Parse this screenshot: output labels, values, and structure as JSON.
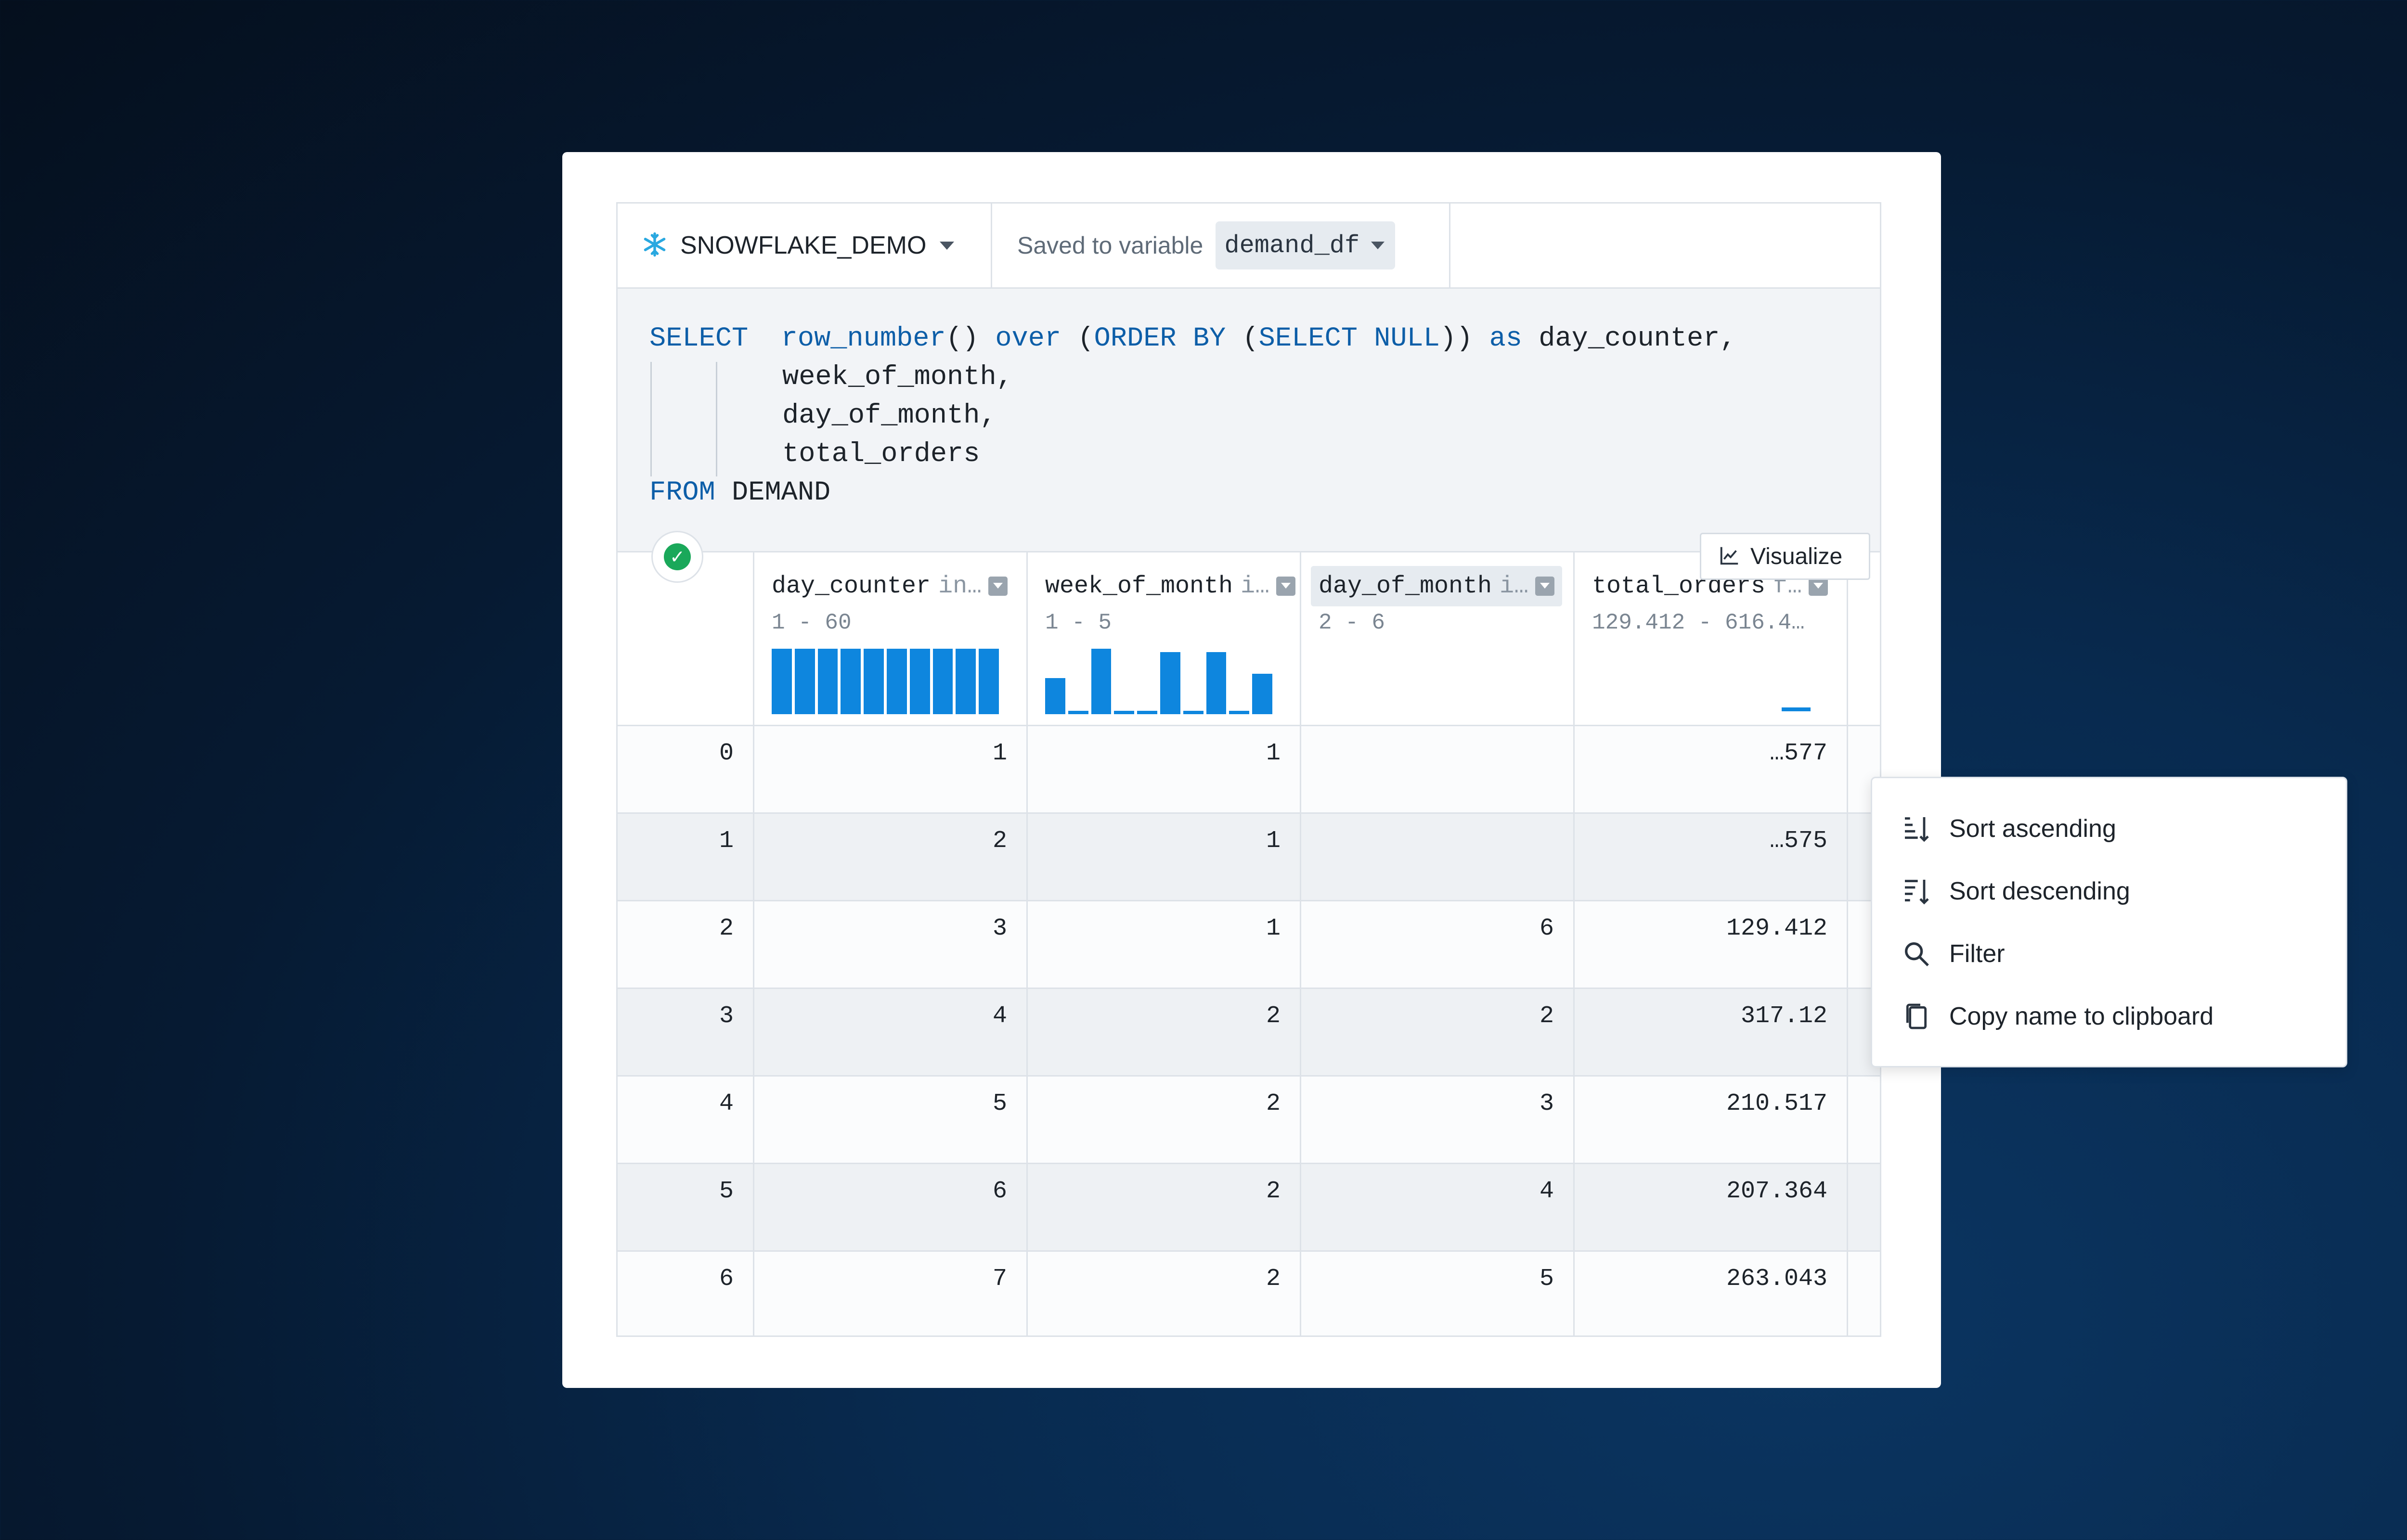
{
  "connection": {
    "name": "SNOWFLAKE_DEMO",
    "icon": "snowflake-icon"
  },
  "saved_variable": {
    "label": "Saved to variable",
    "value": "demand_df"
  },
  "sql": {
    "line1": {
      "kw1": "SELECT",
      "fn": "row_number",
      "p1": "() ",
      "kw2": "over",
      "p2": " (",
      "kw3": "ORDER BY",
      "p3": " (",
      "kw4": "SELECT",
      "p4": " ",
      "kw5": "NULL",
      "p5": ")) ",
      "kw6": "as",
      "p6": " day_counter,"
    },
    "line2": "week_of_month,",
    "line3": "day_of_month,",
    "line4": "total_orders",
    "line5": {
      "kw": "FROM",
      "rest": " DEMAND"
    }
  },
  "status": {
    "state": "success",
    "icon": "check-icon"
  },
  "visualize_label": "Visualize",
  "columns": [
    {
      "name": "day_counter",
      "type": "in…",
      "range": "1 - 60"
    },
    {
      "name": "week_of_month",
      "type": "i…",
      "range": "1 - 5"
    },
    {
      "name": "day_of_month",
      "type": "i…",
      "range": "2 - 6"
    },
    {
      "name": "total_orders",
      "type": "f…",
      "range": "129.412 - 616.4…"
    }
  ],
  "histograms": {
    "day_counter": [
      1,
      1,
      1,
      1,
      1,
      1,
      1,
      1,
      1,
      1
    ],
    "week_of_month": [
      0.55,
      0.05,
      1,
      0.05,
      0.05,
      0.95,
      0.05,
      0.95,
      0.05,
      0.62
    ],
    "accent": "#0e86de"
  },
  "rows": [
    {
      "index": "0",
      "day_counter": "1",
      "week_of_month": "1",
      "day_of_month": "",
      "total_orders": "…577"
    },
    {
      "index": "1",
      "day_counter": "2",
      "week_of_month": "1",
      "day_of_month": "",
      "total_orders": "…575"
    },
    {
      "index": "2",
      "day_counter": "3",
      "week_of_month": "1",
      "day_of_month": "6",
      "total_orders": "129.412"
    },
    {
      "index": "3",
      "day_counter": "4",
      "week_of_month": "2",
      "day_of_month": "2",
      "total_orders": "317.12"
    },
    {
      "index": "4",
      "day_counter": "5",
      "week_of_month": "2",
      "day_of_month": "3",
      "total_orders": "210.517"
    },
    {
      "index": "5",
      "day_counter": "6",
      "week_of_month": "2",
      "day_of_month": "4",
      "total_orders": "207.364"
    },
    {
      "index": "6",
      "day_counter": "7",
      "week_of_month": "2",
      "day_of_month": "5",
      "total_orders": "263.043"
    }
  ],
  "column_menu": {
    "items": [
      {
        "label": "Sort ascending",
        "icon": "sort-ascending-icon"
      },
      {
        "label": "Sort descending",
        "icon": "sort-descending-icon"
      },
      {
        "label": "Filter",
        "icon": "search-icon"
      },
      {
        "label": "Copy name to clipboard",
        "icon": "copy-icon"
      }
    ]
  }
}
